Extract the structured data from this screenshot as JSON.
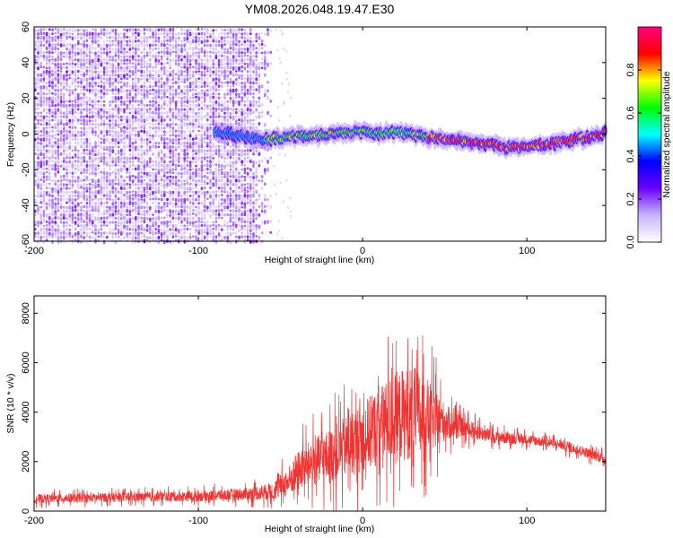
{
  "title": "YM08.2026.048.19.47.E30",
  "charts": {
    "spectrogram": {
      "type": "heatmap",
      "xlabel": "Height of straight line (km)",
      "ylabel": "Frequency (Hz)",
      "xlim": [
        -200,
        148
      ],
      "ylim": [
        -60,
        60
      ],
      "xticks": [
        -200,
        -100,
        0,
        100
      ],
      "yticks": [
        -60,
        -40,
        -20,
        0,
        20,
        40,
        60
      ],
      "noise_region_x": [
        -200,
        -55
      ],
      "signal_track": {
        "x": [
          -90,
          -80,
          -70,
          -60,
          -50,
          -40,
          -30,
          -20,
          -10,
          0,
          10,
          20,
          30,
          40,
          50,
          60,
          70,
          80,
          90,
          100,
          110,
          120,
          130,
          140,
          148
        ],
        "freq": [
          1,
          0,
          -2,
          -3,
          -2,
          -1,
          -1,
          0,
          1,
          1,
          0,
          1,
          0,
          -2,
          -3,
          -4,
          -5,
          -6,
          -8,
          -7,
          -6,
          -5,
          -3,
          -1,
          1
        ]
      },
      "colorbar": {
        "label": "Normalized spectral amplitude",
        "range": [
          0.0,
          1.0
        ],
        "ticks": [
          "0.0",
          "0.2",
          "0.4",
          "0.6",
          "0.8"
        ],
        "colors": [
          "#ffffff",
          "#c8b4ff",
          "#6a00ff",
          "#0000ff",
          "#00ffff",
          "#00ff00",
          "#ffff00",
          "#ff0000",
          "#ff0080"
        ]
      }
    },
    "snr": {
      "type": "line",
      "xlabel": "Height of straight line (km)",
      "ylabel": "SNR (10 * v/v)",
      "xlim": [
        -200,
        148
      ],
      "ylim": [
        0,
        8700
      ],
      "xticks": [
        -200,
        -100,
        0,
        100
      ],
      "yticks": [
        0,
        2000,
        4000,
        6000,
        8000
      ],
      "line_color": "#ee3333",
      "envelope": {
        "x": [
          -200,
          -150,
          -100,
          -70,
          -55,
          -45,
          -40,
          -30,
          -20,
          -10,
          0,
          10,
          20,
          30,
          40,
          50,
          60,
          80,
          100,
          120,
          135,
          148
        ],
        "base": [
          500,
          550,
          600,
          700,
          800,
          1200,
          1600,
          2000,
          2200,
          2600,
          3000,
          3400,
          3800,
          4000,
          3800,
          3600,
          3400,
          3000,
          2900,
          2700,
          2400,
          2100
        ],
        "spread": [
          350,
          350,
          400,
          500,
          700,
          1200,
          1600,
          1900,
          2200,
          2500,
          2800,
          3200,
          3600,
          3800,
          3000,
          1500,
          800,
          500,
          400,
          400,
          400,
          400
        ]
      }
    }
  }
}
